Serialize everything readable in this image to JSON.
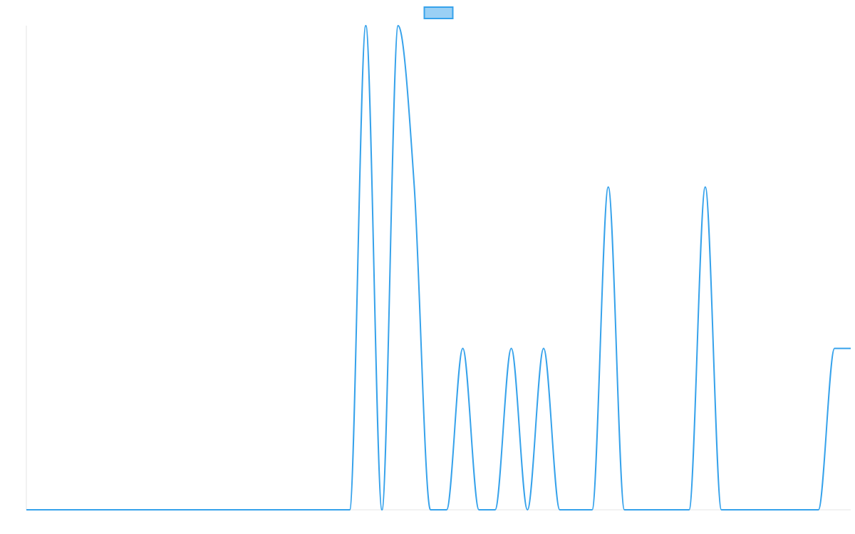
{
  "chart_data": {
    "type": "line",
    "categories": [
      null,
      null,
      null,
      null,
      null,
      null,
      null,
      null,
      null,
      null,
      null,
      null,
      null,
      null,
      null,
      null,
      null,
      null,
      null,
      null,
      null,
      null,
      null,
      null,
      null,
      null,
      null,
      null,
      null,
      null,
      null,
      null,
      null,
      null,
      null,
      null,
      null,
      null,
      null,
      null,
      null,
      null,
      null,
      null,
      null,
      null,
      null,
      null,
      null,
      null,
      null,
      null
    ],
    "series": [
      {
        "color": "#36a2eb",
        "fill": "rgba(54,162,235,0.5)",
        "values": [
          0,
          0,
          0,
          0,
          0,
          0,
          0,
          0,
          0,
          0,
          0,
          0,
          0,
          0,
          0,
          0,
          0,
          0,
          0,
          0,
          0,
          3,
          0,
          3,
          2,
          0,
          0,
          1,
          0,
          0,
          1,
          0,
          1,
          0,
          0,
          0,
          2,
          0,
          0,
          0,
          0,
          0,
          2,
          0,
          0,
          0,
          0,
          0,
          0,
          0,
          1,
          1
        ]
      }
    ],
    "ylim": [
      0,
      3
    ],
    "legend": "top"
  }
}
